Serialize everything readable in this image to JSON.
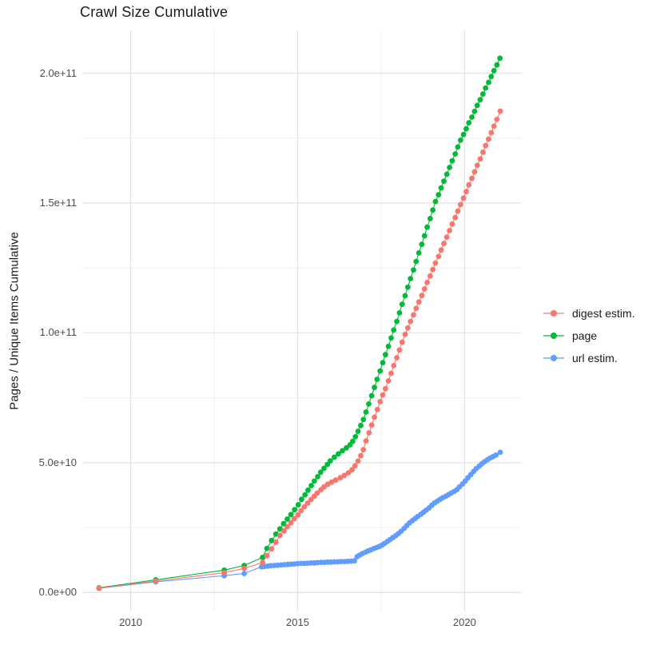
{
  "title": "Crawl Size Cumulative",
  "y_axis_title": "Pages / Unique Items Cumulative",
  "chart_data": {
    "type": "line",
    "title": "Crawl Size Cumulative",
    "xlabel": "",
    "ylabel": "Pages / Unique Items Cumulative",
    "values_unit": "billions (1e9); y tick labels shown in scientific notation",
    "xlim": [
      2008.55,
      2021.69
    ],
    "ylim": [
      -7.3,
      216.5
    ],
    "grid": true,
    "legend_position": "right",
    "x_ticks": {
      "values": [
        2010,
        2015,
        2020
      ],
      "labels": [
        "2010",
        "2015",
        "2020"
      ]
    },
    "y_ticks": {
      "values": [
        0,
        50,
        100,
        150,
        200
      ],
      "labels": [
        "0.0e+00",
        "5.0e+10",
        "1.0e+11",
        "1.5e+11",
        "2.0e+11"
      ]
    },
    "x_minor": [
      2012.5,
      2017.5
    ],
    "y_minor": [
      25,
      75,
      125,
      175
    ],
    "colors": {
      "major_grid": "#e3e3e3",
      "minor_grid": "#efefef",
      "tick_text": "#4d4d4d",
      "title_text": "#1a1a1a"
    },
    "draw_order": [
      "page",
      "url estim.",
      "digest estim."
    ],
    "series": [
      {
        "name": "digest estim.",
        "color": "#F8766D",
        "points": [
          [
            2009.05,
            1.7
          ],
          [
            2010.75,
            4.4
          ],
          [
            2012.8,
            7.6
          ],
          [
            2013.4,
            9.3
          ],
          [
            2013.95,
            11.5
          ],
          [
            2014.08,
            14.2
          ],
          [
            2014.22,
            16.8
          ],
          [
            2014.35,
            19.4
          ],
          [
            2014.47,
            22.0
          ],
          [
            2014.59,
            23.7
          ],
          [
            2014.69,
            25.3
          ],
          [
            2014.8,
            26.8
          ],
          [
            2014.9,
            28.4
          ],
          [
            2015.01,
            29.9
          ],
          [
            2015.1,
            31.5
          ],
          [
            2015.2,
            33.0
          ],
          [
            2015.3,
            34.4
          ],
          [
            2015.4,
            35.8
          ],
          [
            2015.5,
            37.1
          ],
          [
            2015.59,
            38.3
          ],
          [
            2015.7,
            39.6
          ],
          [
            2015.79,
            40.7
          ],
          [
            2015.9,
            41.7
          ],
          [
            2016.02,
            42.5
          ],
          [
            2016.14,
            43.3
          ],
          [
            2016.28,
            44.2
          ],
          [
            2016.4,
            45.1
          ],
          [
            2016.52,
            46.1
          ],
          [
            2016.63,
            47.3
          ],
          [
            2016.72,
            48.8
          ],
          [
            2016.81,
            50.6
          ],
          [
            2016.89,
            52.7
          ],
          [
            2016.97,
            55.0
          ],
          [
            2017.05,
            58.4
          ],
          [
            2017.14,
            61.5
          ],
          [
            2017.22,
            64.5
          ],
          [
            2017.3,
            67.5
          ],
          [
            2017.39,
            70.5
          ],
          [
            2017.47,
            73.5
          ],
          [
            2017.55,
            76.1
          ],
          [
            2017.63,
            78.5
          ],
          [
            2017.72,
            81.5
          ],
          [
            2017.8,
            84.4
          ],
          [
            2017.88,
            87.4
          ],
          [
            2017.97,
            90.4
          ],
          [
            2018.05,
            93.4
          ],
          [
            2018.13,
            96.4
          ],
          [
            2018.22,
            99.4
          ],
          [
            2018.3,
            101.9
          ],
          [
            2018.38,
            104.4
          ],
          [
            2018.47,
            106.9
          ],
          [
            2018.55,
            109.4
          ],
          [
            2018.63,
            111.9
          ],
          [
            2018.72,
            114.4
          ],
          [
            2018.8,
            116.9
          ],
          [
            2018.88,
            119.4
          ],
          [
            2018.97,
            121.9
          ],
          [
            2019.05,
            124.4
          ],
          [
            2019.13,
            126.9
          ],
          [
            2019.22,
            129.4
          ],
          [
            2019.3,
            131.9
          ],
          [
            2019.38,
            134.4
          ],
          [
            2019.47,
            136.9
          ],
          [
            2019.55,
            139.4
          ],
          [
            2019.63,
            141.9
          ],
          [
            2019.72,
            144.4
          ],
          [
            2019.8,
            146.9
          ],
          [
            2019.88,
            149.4
          ],
          [
            2019.97,
            151.9
          ],
          [
            2020.05,
            154.4
          ],
          [
            2020.13,
            157.0
          ],
          [
            2020.22,
            159.5
          ],
          [
            2020.3,
            162.0
          ],
          [
            2020.38,
            164.5
          ],
          [
            2020.47,
            167.0
          ],
          [
            2020.55,
            169.6
          ],
          [
            2020.63,
            172.1
          ],
          [
            2020.72,
            174.6
          ],
          [
            2020.8,
            177.1
          ],
          [
            2020.88,
            179.6
          ],
          [
            2020.97,
            182.2
          ],
          [
            2021.07,
            185.4
          ]
        ]
      },
      {
        "name": "page",
        "color": "#00BA38",
        "points": [
          [
            2009.05,
            1.8
          ],
          [
            2010.75,
            4.9
          ],
          [
            2012.8,
            8.6
          ],
          [
            2013.4,
            10.4
          ],
          [
            2013.95,
            13.5
          ],
          [
            2014.08,
            17.0
          ],
          [
            2014.22,
            20.0
          ],
          [
            2014.35,
            22.5
          ],
          [
            2014.47,
            24.5
          ],
          [
            2014.58,
            26.5
          ],
          [
            2014.69,
            28.3
          ],
          [
            2014.8,
            30.0
          ],
          [
            2014.91,
            31.9
          ],
          [
            2015.02,
            33.8
          ],
          [
            2015.12,
            35.9
          ],
          [
            2015.22,
            37.6
          ],
          [
            2015.31,
            39.4
          ],
          [
            2015.41,
            41.2
          ],
          [
            2015.5,
            42.9
          ],
          [
            2015.6,
            44.6
          ],
          [
            2015.69,
            46.3
          ],
          [
            2015.79,
            47.8
          ],
          [
            2015.89,
            49.3
          ],
          [
            2015.98,
            50.7
          ],
          [
            2016.1,
            52.1
          ],
          [
            2016.22,
            53.4
          ],
          [
            2016.34,
            54.6
          ],
          [
            2016.46,
            55.7
          ],
          [
            2016.57,
            56.9
          ],
          [
            2016.65,
            58.2
          ],
          [
            2016.73,
            60.0
          ],
          [
            2016.81,
            62.1
          ],
          [
            2016.89,
            64.3
          ],
          [
            2016.97,
            66.6
          ],
          [
            2017.05,
            69.5
          ],
          [
            2017.13,
            72.6
          ],
          [
            2017.22,
            75.8
          ],
          [
            2017.3,
            79.0
          ],
          [
            2017.38,
            82.1
          ],
          [
            2017.47,
            85.3
          ],
          [
            2017.55,
            88.5
          ],
          [
            2017.63,
            91.6
          ],
          [
            2017.72,
            94.8
          ],
          [
            2017.8,
            98.0
          ],
          [
            2017.88,
            101.1
          ],
          [
            2017.97,
            104.4
          ],
          [
            2018.05,
            107.7
          ],
          [
            2018.13,
            111.0
          ],
          [
            2018.22,
            114.3
          ],
          [
            2018.3,
            117.6
          ],
          [
            2018.38,
            120.9
          ],
          [
            2018.47,
            124.2
          ],
          [
            2018.55,
            127.5
          ],
          [
            2018.63,
            130.8
          ],
          [
            2018.72,
            134.1
          ],
          [
            2018.8,
            137.4
          ],
          [
            2018.88,
            140.7
          ],
          [
            2018.97,
            144.0
          ],
          [
            2019.05,
            147.3
          ],
          [
            2019.13,
            150.6
          ],
          [
            2019.22,
            153.2
          ],
          [
            2019.3,
            155.8
          ],
          [
            2019.38,
            158.4
          ],
          [
            2019.47,
            161.1
          ],
          [
            2019.55,
            163.7
          ],
          [
            2019.63,
            166.3
          ],
          [
            2019.72,
            168.9
          ],
          [
            2019.8,
            171.6
          ],
          [
            2019.88,
            174.2
          ],
          [
            2019.97,
            176.4
          ],
          [
            2020.05,
            178.6
          ],
          [
            2020.13,
            180.9
          ],
          [
            2020.22,
            183.1
          ],
          [
            2020.3,
            185.3
          ],
          [
            2020.38,
            187.6
          ],
          [
            2020.47,
            189.8
          ],
          [
            2020.55,
            192.0
          ],
          [
            2020.63,
            194.3
          ],
          [
            2020.72,
            196.5
          ],
          [
            2020.8,
            198.7
          ],
          [
            2020.88,
            201.0
          ],
          [
            2020.97,
            203.2
          ],
          [
            2021.06,
            205.8
          ]
        ]
      },
      {
        "name": "url estim.",
        "color": "#619CFF",
        "points": [
          [
            2009.05,
            1.6
          ],
          [
            2010.75,
            4.1
          ],
          [
            2012.8,
            6.5
          ],
          [
            2013.4,
            7.3
          ],
          [
            2013.92,
            9.9
          ],
          [
            2014.0,
            10.0
          ],
          [
            2014.1,
            10.2
          ],
          [
            2014.2,
            10.3
          ],
          [
            2014.3,
            10.4
          ],
          [
            2014.4,
            10.5
          ],
          [
            2014.5,
            10.6
          ],
          [
            2014.6,
            10.7
          ],
          [
            2014.7,
            10.8
          ],
          [
            2014.8,
            10.9
          ],
          [
            2014.9,
            11.0
          ],
          [
            2015.0,
            11.1
          ],
          [
            2015.1,
            11.2
          ],
          [
            2015.2,
            11.2
          ],
          [
            2015.3,
            11.3
          ],
          [
            2015.4,
            11.4
          ],
          [
            2015.5,
            11.4
          ],
          [
            2015.6,
            11.5
          ],
          [
            2015.7,
            11.6
          ],
          [
            2015.8,
            11.6
          ],
          [
            2015.9,
            11.7
          ],
          [
            2016.0,
            11.7
          ],
          [
            2016.1,
            11.8
          ],
          [
            2016.2,
            11.8
          ],
          [
            2016.3,
            11.9
          ],
          [
            2016.4,
            11.9
          ],
          [
            2016.5,
            12.0
          ],
          [
            2016.6,
            12.1
          ],
          [
            2016.7,
            12.2
          ],
          [
            2016.78,
            13.8
          ],
          [
            2016.86,
            14.4
          ],
          [
            2016.94,
            15.0
          ],
          [
            2017.03,
            15.5
          ],
          [
            2017.11,
            16.0
          ],
          [
            2017.19,
            16.4
          ],
          [
            2017.28,
            16.9
          ],
          [
            2017.36,
            17.3
          ],
          [
            2017.44,
            17.7
          ],
          [
            2017.52,
            18.2
          ],
          [
            2017.6,
            18.9
          ],
          [
            2017.69,
            19.7
          ],
          [
            2017.77,
            20.4
          ],
          [
            2017.85,
            21.1
          ],
          [
            2017.94,
            21.9
          ],
          [
            2018.02,
            22.7
          ],
          [
            2018.1,
            23.6
          ],
          [
            2018.19,
            24.7
          ],
          [
            2018.27,
            25.8
          ],
          [
            2018.35,
            26.8
          ],
          [
            2018.44,
            27.7
          ],
          [
            2018.52,
            28.5
          ],
          [
            2018.6,
            29.3
          ],
          [
            2018.69,
            30.1
          ],
          [
            2018.77,
            30.9
          ],
          [
            2018.85,
            31.7
          ],
          [
            2018.94,
            32.6
          ],
          [
            2019.02,
            33.6
          ],
          [
            2019.1,
            34.5
          ],
          [
            2019.19,
            35.2
          ],
          [
            2019.27,
            35.9
          ],
          [
            2019.35,
            36.5
          ],
          [
            2019.44,
            37.1
          ],
          [
            2019.52,
            37.7
          ],
          [
            2019.6,
            38.3
          ],
          [
            2019.69,
            38.9
          ],
          [
            2019.77,
            39.6
          ],
          [
            2019.85,
            40.7
          ],
          [
            2019.94,
            41.8
          ],
          [
            2020.02,
            42.9
          ],
          [
            2020.1,
            44.2
          ],
          [
            2020.19,
            45.4
          ],
          [
            2020.27,
            46.6
          ],
          [
            2020.35,
            47.7
          ],
          [
            2020.44,
            48.7
          ],
          [
            2020.52,
            49.6
          ],
          [
            2020.6,
            50.4
          ],
          [
            2020.69,
            51.2
          ],
          [
            2020.77,
            51.8
          ],
          [
            2020.85,
            52.3
          ],
          [
            2020.94,
            52.9
          ],
          [
            2021.07,
            54.0
          ]
        ]
      }
    ]
  }
}
